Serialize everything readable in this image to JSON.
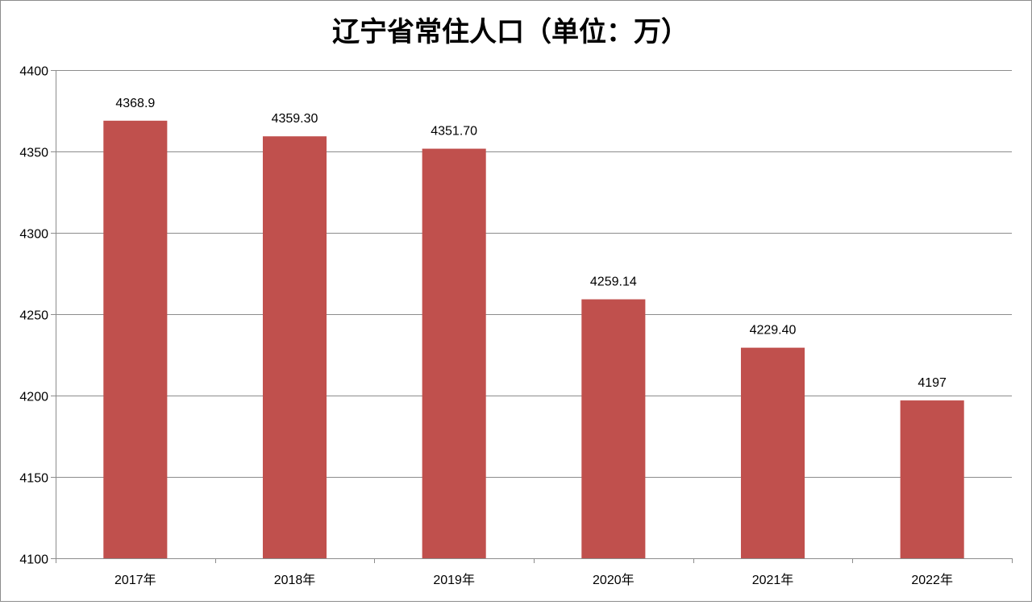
{
  "chart_data": {
    "type": "bar",
    "title": "辽宁省常住人口（单位：万）",
    "categories": [
      "2017年",
      "2018年",
      "2019年",
      "2020年",
      "2021年",
      "2022年"
    ],
    "values": [
      4368.9,
      4359.3,
      4351.7,
      4259.14,
      4229.4,
      4197
    ],
    "value_labels": [
      "4368.9",
      "4359.30",
      "4351.70",
      "4259.14",
      "4229.40",
      "4197"
    ],
    "ylim": [
      4100,
      4400
    ],
    "yticks": [
      4100,
      4150,
      4200,
      4250,
      4300,
      4350,
      4400
    ],
    "xlabel": "",
    "ylabel": "",
    "grid": true,
    "bar_color": "#c0504d",
    "grid_color": "#8c8c8c"
  }
}
